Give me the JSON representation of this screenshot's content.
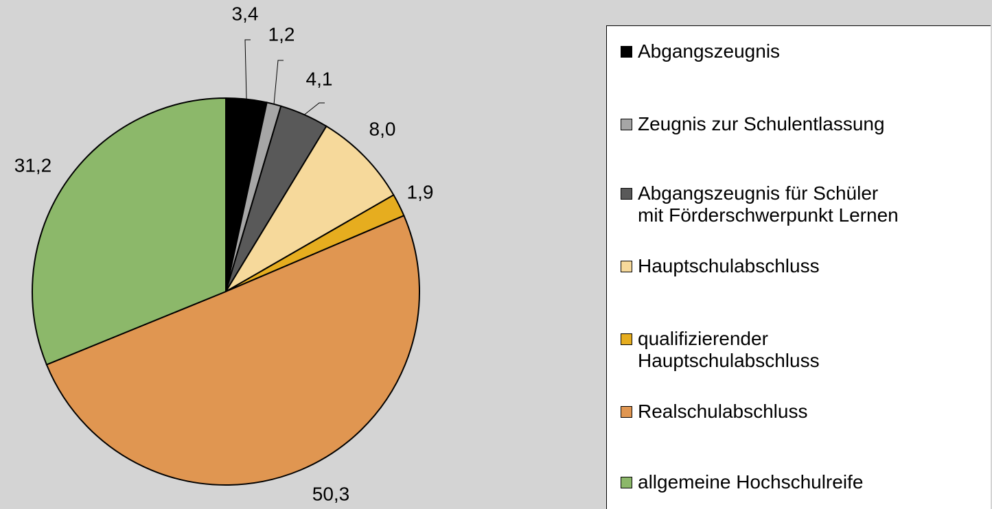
{
  "chart_data": {
    "type": "pie",
    "categories": [
      "Abgangszeugnis",
      "Zeugnis zur Schulentlassung",
      "Abgangszeugnis für Schüler\nmit Förderschwerpunkt Lernen",
      "Hauptschulabschluss",
      "qualifizierender\nHauptschulabschluss",
      "Realschulabschluss",
      "allgemeine Hochschulreife"
    ],
    "values": [
      3.4,
      1.2,
      4.1,
      8.0,
      1.9,
      50.3,
      31.2
    ],
    "value_labels": [
      "3,4",
      "1,2",
      "4,1",
      "8,0",
      "1,9",
      "50,3",
      "31,2"
    ],
    "colors": [
      "#000000",
      "#a6a6a6",
      "#595959",
      "#f6d99b",
      "#e6ad1f",
      "#e09651",
      "#8cb86a"
    ]
  }
}
